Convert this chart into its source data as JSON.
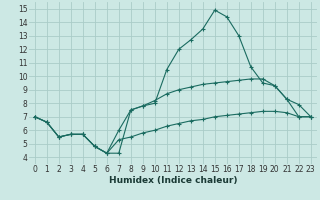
{
  "xlabel": "Humidex (Indice chaleur)",
  "bg_color": "#cce8e4",
  "grid_color": "#aaccc8",
  "line_color": "#1a6b60",
  "xlim": [
    -0.5,
    23.5
  ],
  "ylim": [
    3.5,
    15.5
  ],
  "xticks": [
    0,
    1,
    2,
    3,
    4,
    5,
    6,
    7,
    8,
    9,
    10,
    11,
    12,
    13,
    14,
    15,
    16,
    17,
    18,
    19,
    20,
    21,
    22,
    23
  ],
  "yticks": [
    4,
    5,
    6,
    7,
    8,
    9,
    10,
    11,
    12,
    13,
    14,
    15
  ],
  "line1_x": [
    0,
    1,
    2,
    3,
    4,
    5,
    6,
    7,
    8,
    9,
    10,
    11,
    12,
    13,
    14,
    15,
    16,
    17,
    18,
    19,
    20,
    21,
    22,
    23
  ],
  "line1_y": [
    7.0,
    6.6,
    5.5,
    5.7,
    5.7,
    4.8,
    4.3,
    4.3,
    7.5,
    7.8,
    8.0,
    10.5,
    12.0,
    12.7,
    13.5,
    14.9,
    14.4,
    13.0,
    10.7,
    9.5,
    9.3,
    8.3,
    7.0,
    7.0
  ],
  "line2_x": [
    0,
    1,
    2,
    3,
    4,
    5,
    6,
    7,
    8,
    9,
    10,
    11,
    12,
    13,
    14,
    15,
    16,
    17,
    18,
    19,
    20,
    21,
    22,
    23
  ],
  "line2_y": [
    7.0,
    6.6,
    5.5,
    5.7,
    5.7,
    4.8,
    4.3,
    6.0,
    7.5,
    7.8,
    8.2,
    8.7,
    9.0,
    9.2,
    9.4,
    9.5,
    9.6,
    9.7,
    9.8,
    9.8,
    9.3,
    8.3,
    7.9,
    7.0
  ],
  "line3_x": [
    0,
    1,
    2,
    3,
    4,
    5,
    6,
    7,
    8,
    9,
    10,
    11,
    12,
    13,
    14,
    15,
    16,
    17,
    18,
    19,
    20,
    21,
    22,
    23
  ],
  "line3_y": [
    7.0,
    6.6,
    5.5,
    5.7,
    5.7,
    4.8,
    4.3,
    5.3,
    5.5,
    5.8,
    6.0,
    6.3,
    6.5,
    6.7,
    6.8,
    7.0,
    7.1,
    7.2,
    7.3,
    7.4,
    7.4,
    7.3,
    7.0,
    7.0
  ]
}
